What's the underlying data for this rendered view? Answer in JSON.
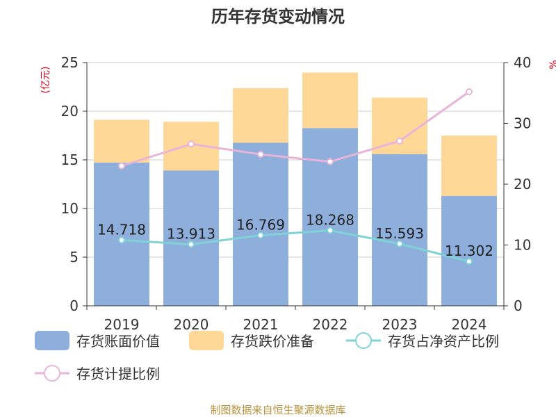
{
  "chart_data": {
    "type": "bar",
    "title": "历年存货变动情况",
    "categories": [
      "2019",
      "2020",
      "2021",
      "2022",
      "2023",
      "2024"
    ],
    "left_axis": {
      "unit": "(亿元)",
      "ylim": [
        0,
        25
      ],
      "ticks": [
        "0",
        "5",
        "10",
        "15",
        "20",
        "25"
      ]
    },
    "right_axis": {
      "unit": "%",
      "ylim": [
        0,
        40
      ],
      "ticks": [
        "0",
        "10",
        "20",
        "30",
        "40"
      ]
    },
    "series": [
      {
        "name": "存货账面价值",
        "type": "bar",
        "axis": "left",
        "color": "#8eaedb",
        "values": [
          14.718,
          13.913,
          16.769,
          18.268,
          15.593,
          11.302
        ],
        "labels": [
          "14.718",
          "13.913",
          "16.769",
          "18.268",
          "15.593",
          "11.302"
        ]
      },
      {
        "name": "存货跌价准备",
        "type": "bar",
        "stacked": true,
        "axis": "left",
        "color": "#ffd898",
        "values": [
          4.4,
          5.0,
          5.6,
          5.7,
          5.8,
          6.2
        ]
      },
      {
        "name": "存货占净资产比例",
        "type": "line",
        "axis": "right",
        "color": "#7fd2d5",
        "values": [
          10.8,
          10.1,
          11.6,
          12.4,
          10.2,
          7.3
        ]
      },
      {
        "name": "存货计提比例",
        "type": "line",
        "axis": "right",
        "color": "#e8b4d8",
        "values": [
          23.0,
          26.6,
          24.9,
          23.7,
          27.1,
          35.2
        ]
      }
    ],
    "grid": true,
    "legend_position": "bottom"
  },
  "source": "制图数据来自恒生聚源数据库"
}
